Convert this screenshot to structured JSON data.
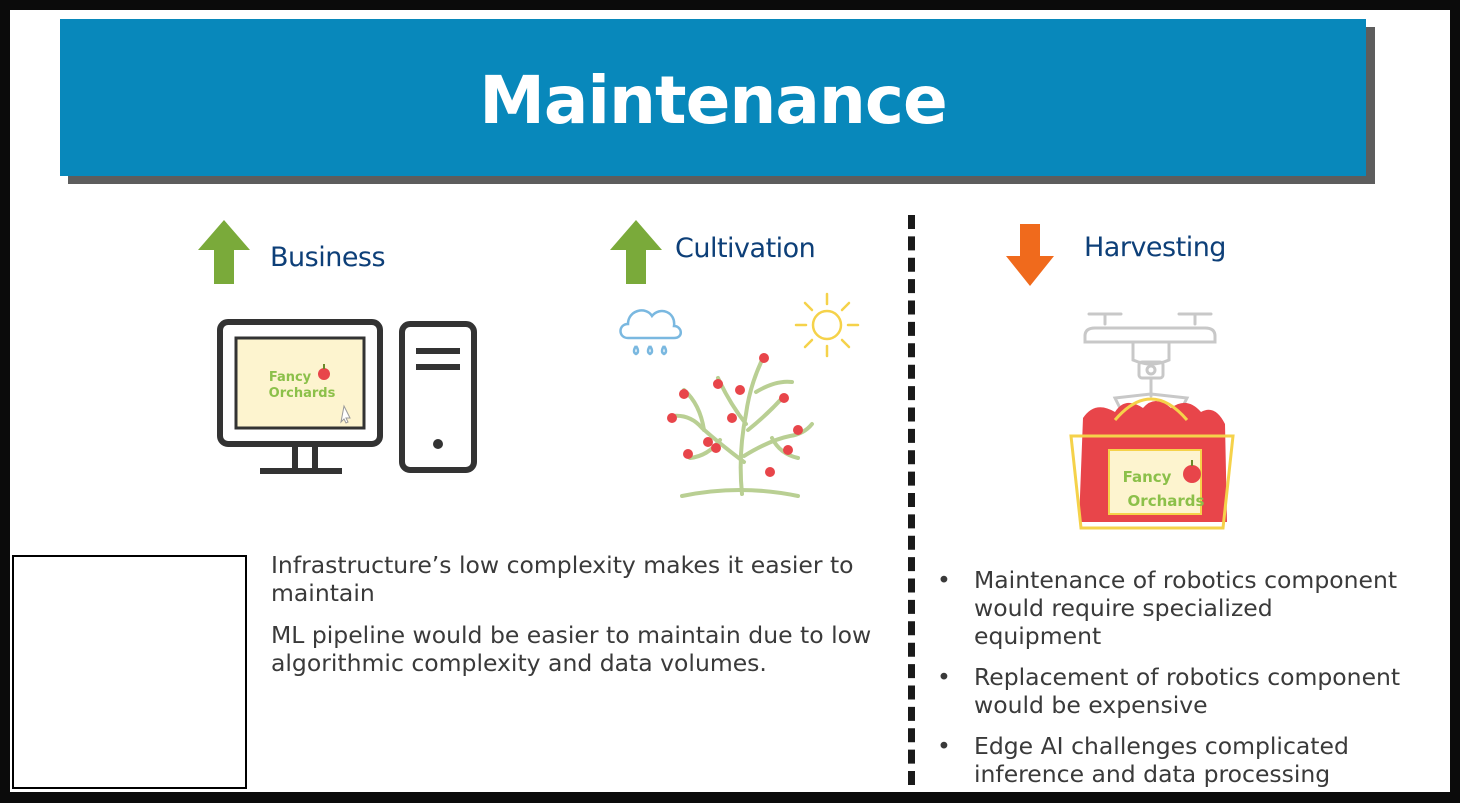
{
  "slide": {
    "title": "Maintenance"
  },
  "columns": {
    "business": {
      "label": "Business",
      "trend": "up",
      "arrow_color": "#7aaa3a",
      "sign_line1": "Fancy",
      "sign_line2": "Orchards"
    },
    "cultivation": {
      "label": "Cultivation",
      "trend": "up",
      "arrow_color": "#7aaa3a"
    },
    "harvesting": {
      "label": "Harvesting",
      "trend": "down",
      "arrow_color": "#f06a1c",
      "sign_line1": "Fancy",
      "sign_line2": "Orchards"
    }
  },
  "left_text": [
    "Infrastructure’s low complexity makes it easier to maintain",
    "ML pipeline would be easier to maintain due to low algorithmic complexity and data volumes."
  ],
  "harvesting_bullets": [
    "Maintenance of robotics component would require specialized equipment",
    "Replacement of robotics component would be expensive",
    "Edge AI challenges complicated inference and data processing"
  ],
  "bullet_symbol": "•",
  "colors": {
    "banner": "#0888bb",
    "title_text": "#ffffff",
    "column_title": "#0d3f78",
    "body_text": "#3a3a3a",
    "apple_red": "#e8454a",
    "sign_green": "#8cc04a"
  }
}
